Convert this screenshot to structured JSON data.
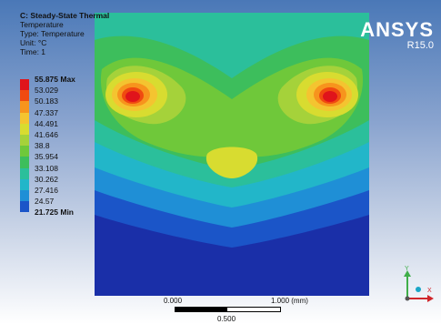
{
  "header": {
    "title": "C: Steady-State Thermal",
    "line1": "Temperature",
    "line2": "Type: Temperature",
    "line3": "Unit: °C",
    "line4": "Time: 1"
  },
  "logo": {
    "brand": "ANSYS",
    "release": "R15.0"
  },
  "legend": {
    "items": [
      {
        "label": "55.875 Max",
        "color": "#e0141b",
        "bold": true
      },
      {
        "label": "53.029",
        "color": "#f04a10",
        "bold": false
      },
      {
        "label": "50.183",
        "color": "#f7941d",
        "bold": false
      },
      {
        "label": "47.337",
        "color": "#f4c430",
        "bold": false
      },
      {
        "label": "44.491",
        "color": "#d8dc30",
        "bold": false
      },
      {
        "label": "41.646",
        "color": "#a5d23a",
        "bold": false
      },
      {
        "label": "38.8",
        "color": "#6fc83a",
        "bold": false
      },
      {
        "label": "35.954",
        "color": "#3dbe5c",
        "bold": false
      },
      {
        "label": "33.108",
        "color": "#2bbf9b",
        "bold": false
      },
      {
        "label": "30.262",
        "color": "#22b6c9",
        "bold": false
      },
      {
        "label": "27.416",
        "color": "#1f8fd6",
        "bold": false
      },
      {
        "label": "24.57",
        "color": "#1b55c8",
        "bold": false
      },
      {
        "label": "21.725 Min",
        "color": "#1a2fa8",
        "bold": true
      }
    ]
  },
  "scale": {
    "left_label": "0.000",
    "right_label": "1.000 (mm)",
    "mid_label": "0.500"
  },
  "triad": {
    "y_label": "Y",
    "x_label": "X"
  }
}
